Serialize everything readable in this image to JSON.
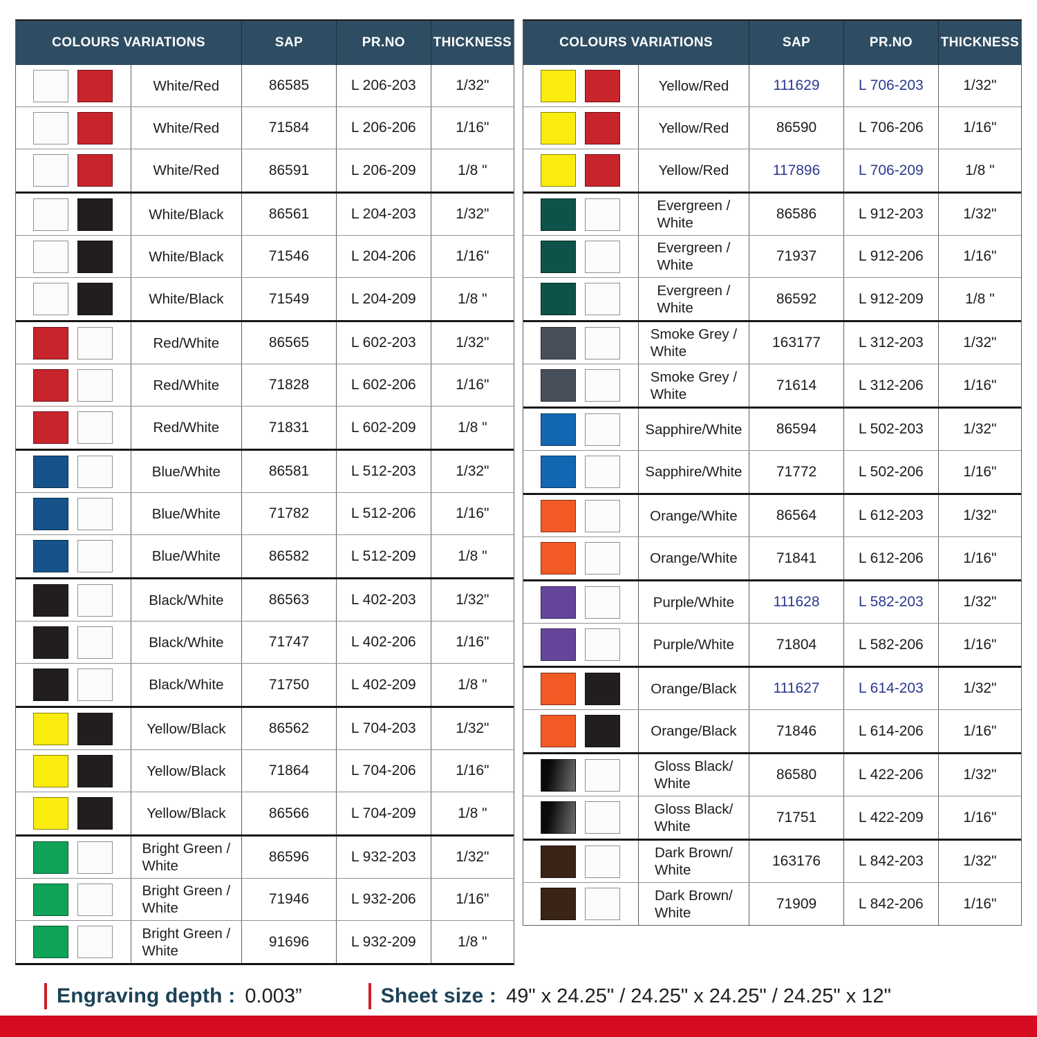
{
  "headers": [
    "COLOURS VARIATIONS",
    "SAP",
    "PR.NO",
    "THICKNESS"
  ],
  "colors": {
    "header_bg": "#2e4d63",
    "navy_link_text": "#2b3890",
    "footer_label_blue": "#1d4257",
    "footer_bar_red": "#cc2027",
    "bottom_bar_red": "#d50c1f"
  },
  "swatch_colors": {
    "white": "#fbfbfb",
    "red": "#c8242b",
    "black": "#221e1f",
    "blue": "#15538a",
    "yellow": "#f9ec0e",
    "bright_green": "#0fa357",
    "evergreen": "#0d5349",
    "smoke_grey": "#47505a",
    "sapphire": "#1267b2",
    "orange": "#f15a24",
    "purple": "#63459c",
    "dark_brown": "#3a2317",
    "gloss_black_start": "#0a0a0a",
    "gloss_black_end": "#707070"
  },
  "tables": [
    {
      "id": "left",
      "groups": [
        {
          "label": "White/Red",
          "swatches": [
            "white",
            "red"
          ],
          "rows": [
            {
              "sap": "86585",
              "pr": "L 206-203",
              "thickness": "1/32\"",
              "link": false
            },
            {
              "sap": "71584",
              "pr": "L 206-206",
              "thickness": "1/16\"",
              "link": false
            },
            {
              "sap": "86591",
              "pr": "L 206-209",
              "thickness": "1/8 \"",
              "link": false
            }
          ]
        },
        {
          "label": "White/Black",
          "swatches": [
            "white",
            "black"
          ],
          "rows": [
            {
              "sap": "86561",
              "pr": "L 204-203",
              "thickness": "1/32\"",
              "link": false
            },
            {
              "sap": "71546",
              "pr": "L 204-206",
              "thickness": "1/16\"",
              "link": false
            },
            {
              "sap": "71549",
              "pr": "L 204-209",
              "thickness": "1/8 \"",
              "link": false
            }
          ]
        },
        {
          "label": "Red/White",
          "swatches": [
            "red",
            "white"
          ],
          "rows": [
            {
              "sap": "86565",
              "pr": "L 602-203",
              "thickness": "1/32\"",
              "link": false
            },
            {
              "sap": "71828",
              "pr": "L 602-206",
              "thickness": "1/16\"",
              "link": false
            },
            {
              "sap": "71831",
              "pr": "L 602-209",
              "thickness": "1/8 \"",
              "link": false
            }
          ]
        },
        {
          "label": "Blue/White",
          "swatches": [
            "blue",
            "white"
          ],
          "rows": [
            {
              "sap": "86581",
              "pr": "L 512-203",
              "thickness": "1/32\"",
              "link": false
            },
            {
              "sap": "71782",
              "pr": "L 512-206",
              "thickness": "1/16\"",
              "link": false
            },
            {
              "sap": "86582",
              "pr": "L 512-209",
              "thickness": "1/8 \"",
              "link": false
            }
          ]
        },
        {
          "label": "Black/White",
          "swatches": [
            "black",
            "white"
          ],
          "rows": [
            {
              "sap": "86563",
              "pr": "L 402-203",
              "thickness": "1/32\"",
              "link": false
            },
            {
              "sap": "71747",
              "pr": "L 402-206",
              "thickness": "1/16\"",
              "link": false
            },
            {
              "sap": "71750",
              "pr": "L 402-209",
              "thickness": "1/8 \"",
              "link": false
            }
          ]
        },
        {
          "label": "Yellow/Black",
          "swatches": [
            "yellow",
            "black"
          ],
          "rows": [
            {
              "sap": "86562",
              "pr": "L 704-203",
              "thickness": "1/32\"",
              "link": false
            },
            {
              "sap": "71864",
              "pr": "L 704-206",
              "thickness": "1/16\"",
              "link": false
            },
            {
              "sap": "86566",
              "pr": "L 704-209",
              "thickness": "1/8 \"",
              "link": false
            }
          ]
        },
        {
          "label": "Bright Green /\nWhite",
          "swatches": [
            "bright_green",
            "white"
          ],
          "rows": [
            {
              "sap": "86596",
              "pr": "L 932-203",
              "thickness": "1/32\"",
              "link": false
            },
            {
              "sap": "71946",
              "pr": "L 932-206",
              "thickness": "1/16\"",
              "link": false
            },
            {
              "sap": "91696",
              "pr": "L 932-209",
              "thickness": "1/8 \"",
              "link": false
            }
          ]
        }
      ]
    },
    {
      "id": "right",
      "groups": [
        {
          "label": "Yellow/Red",
          "swatches": [
            "yellow",
            "red"
          ],
          "rows": [
            {
              "sap": "111629",
              "pr": "L 706-203",
              "thickness": "1/32\"",
              "link": true
            },
            {
              "sap": "86590",
              "pr": "L 706-206",
              "thickness": "1/16\"",
              "link": false
            },
            {
              "sap": "117896",
              "pr": "L 706-209",
              "thickness": "1/8 \"",
              "link": true
            }
          ]
        },
        {
          "label": "Evergreen /\nWhite",
          "swatches": [
            "evergreen",
            "white"
          ],
          "rows": [
            {
              "sap": "86586",
              "pr": "L 912-203",
              "thickness": "1/32\"",
              "link": false
            },
            {
              "sap": "71937",
              "pr": "L 912-206",
              "thickness": "1/16\"",
              "link": false
            },
            {
              "sap": "86592",
              "pr": "L 912-209",
              "thickness": "1/8 \"",
              "link": false
            }
          ]
        },
        {
          "label": "Smoke Grey /\nWhite",
          "swatches": [
            "smoke_grey",
            "white"
          ],
          "rows": [
            {
              "sap": "163177",
              "pr": "L 312-203",
              "thickness": "1/32\"",
              "link": false
            },
            {
              "sap": "71614",
              "pr": "L 312-206",
              "thickness": "1/16\"",
              "link": false
            }
          ]
        },
        {
          "label": "Sapphire/White",
          "swatches": [
            "sapphire",
            "white"
          ],
          "rows": [
            {
              "sap": "86594",
              "pr": "L 502-203",
              "thickness": "1/32\"",
              "link": false
            },
            {
              "sap": "71772",
              "pr": "L 502-206",
              "thickness": "1/16\"",
              "link": false
            }
          ]
        },
        {
          "label": "Orange/White",
          "swatches": [
            "orange",
            "white"
          ],
          "rows": [
            {
              "sap": "86564",
              "pr": "L 612-203",
              "thickness": "1/32\"",
              "link": false
            },
            {
              "sap": "71841",
              "pr": "L 612-206",
              "thickness": "1/16\"",
              "link": false
            }
          ]
        },
        {
          "label": "Purple/White",
          "swatches": [
            "purple",
            "white"
          ],
          "rows": [
            {
              "sap": "111628",
              "pr": "L 582-203",
              "thickness": "1/32\"",
              "link": true
            },
            {
              "sap": "71804",
              "pr": "L 582-206",
              "thickness": "1/16\"",
              "link": false
            }
          ]
        },
        {
          "label": "Orange/Black",
          "swatches": [
            "orange",
            "black"
          ],
          "rows": [
            {
              "sap": "111627",
              "pr": "L 614-203",
              "thickness": "1/32\"",
              "link": true
            },
            {
              "sap": "71846",
              "pr": "L 614-206",
              "thickness": "1/16\"",
              "link": false
            }
          ]
        },
        {
          "label": "Gloss Black/\nWhite",
          "swatches": [
            "gloss_black",
            "white"
          ],
          "rows": [
            {
              "sap": "86580",
              "pr": "L 422-206",
              "thickness": "1/32\"",
              "link": false
            },
            {
              "sap": "71751",
              "pr": "L 422-209",
              "thickness": "1/16\"",
              "link": false
            }
          ]
        },
        {
          "label": "Dark Brown/\nWhite",
          "swatches": [
            "dark_brown",
            "white"
          ],
          "rows": [
            {
              "sap": "163176",
              "pr": "L 842-203",
              "thickness": "1/32\"",
              "link": false
            },
            {
              "sap": "71909",
              "pr": "L 842-206",
              "thickness": "1/16\"",
              "link": false
            }
          ]
        }
      ]
    }
  ],
  "footer": {
    "engraving_label": "Engraving depth :",
    "engraving_value": "0.003”",
    "sheet_label": "Sheet size :",
    "sheet_value": "49\" x 24.25\" / 24.25\" x 24.25\" / 24.25\" x 12\""
  }
}
